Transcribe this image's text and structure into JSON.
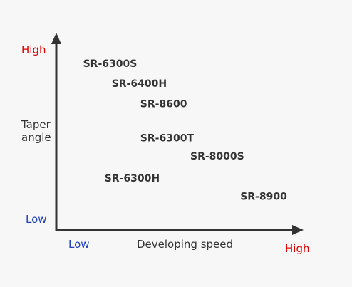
{
  "chart_data": {
    "type": "scatter",
    "xlabel": "Developing speed",
    "ylabel_lines": [
      "Taper",
      "angle"
    ],
    "axis_labels": {
      "y_high": "High",
      "y_low": "Low",
      "x_low": "Low",
      "x_high": "High"
    },
    "points": [
      {
        "label": "SR-6300S",
        "x": 1.5,
        "y": 7.6
      },
      {
        "label": "SR-6400H",
        "x": 3.1,
        "y": 6.6
      },
      {
        "label": "SR-8600",
        "x": 4.7,
        "y": 5.6
      },
      {
        "label": "SR-6300T",
        "x": 4.7,
        "y": 3.9
      },
      {
        "label": "SR-8000S",
        "x": 7.5,
        "y": 3.0
      },
      {
        "label": "SR-6300H",
        "x": 2.7,
        "y": 1.9
      },
      {
        "label": "SR-8900",
        "x": 10.3,
        "y": 1.0
      }
    ],
    "xlim": [
      0,
      14
    ],
    "ylim": [
      -0.5,
      9.5
    ],
    "grid": false,
    "colors": {
      "axis": "#333333",
      "high": "#e00000",
      "low": "#1f3fbf",
      "text": "#333333"
    }
  }
}
